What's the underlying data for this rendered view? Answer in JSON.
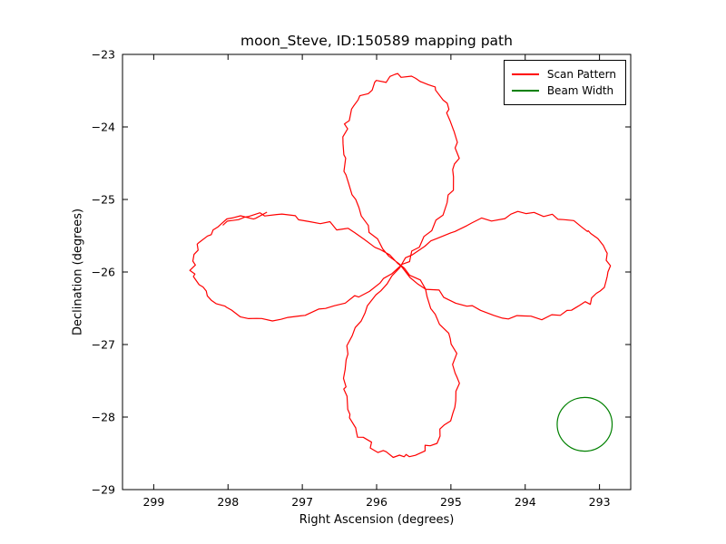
{
  "chart_data": {
    "type": "line",
    "title": "moon_Steve, ID:150589 mapping path",
    "xlabel": "Right Ascension (degrees)",
    "ylabel": "Declination (degrees)",
    "grid": false,
    "x_axis_inverted": true,
    "xlim": [
      299.42,
      292.58
    ],
    "ylim": [
      -29,
      -23
    ],
    "x_ticks": [
      299,
      298,
      297,
      296,
      295,
      294,
      293
    ],
    "x_tick_labels": [
      "299",
      "298",
      "297",
      "296",
      "295",
      "294",
      "293"
    ],
    "y_ticks": [
      -29,
      -28,
      -27,
      -26,
      -25,
      -24,
      -23
    ],
    "y_tick_labels": [
      "−29",
      "−28",
      "−27",
      "−26",
      "−25",
      "−24",
      "−23"
    ],
    "legend": {
      "position": "upper right",
      "entries": [
        "Scan Pattern",
        "Beam Width"
      ]
    },
    "series": [
      {
        "name": "Scan Pattern",
        "color": "#ff0000",
        "type": "rose_scan",
        "petals": 4,
        "center_ra": 295.68,
        "center_dec": -25.92,
        "amplitude_ra": 2.8,
        "amplitude_dec": 2.62,
        "noise_deg": 0.045,
        "n_points": 260,
        "t_start": 0.25,
        "t_overlap": 0.15,
        "seed": 42
      },
      {
        "name": "Beam Width",
        "color": "#008000",
        "type": "circle",
        "center_ra": 293.2,
        "center_dec": -28.1,
        "radius_deg": 0.37
      }
    ]
  }
}
